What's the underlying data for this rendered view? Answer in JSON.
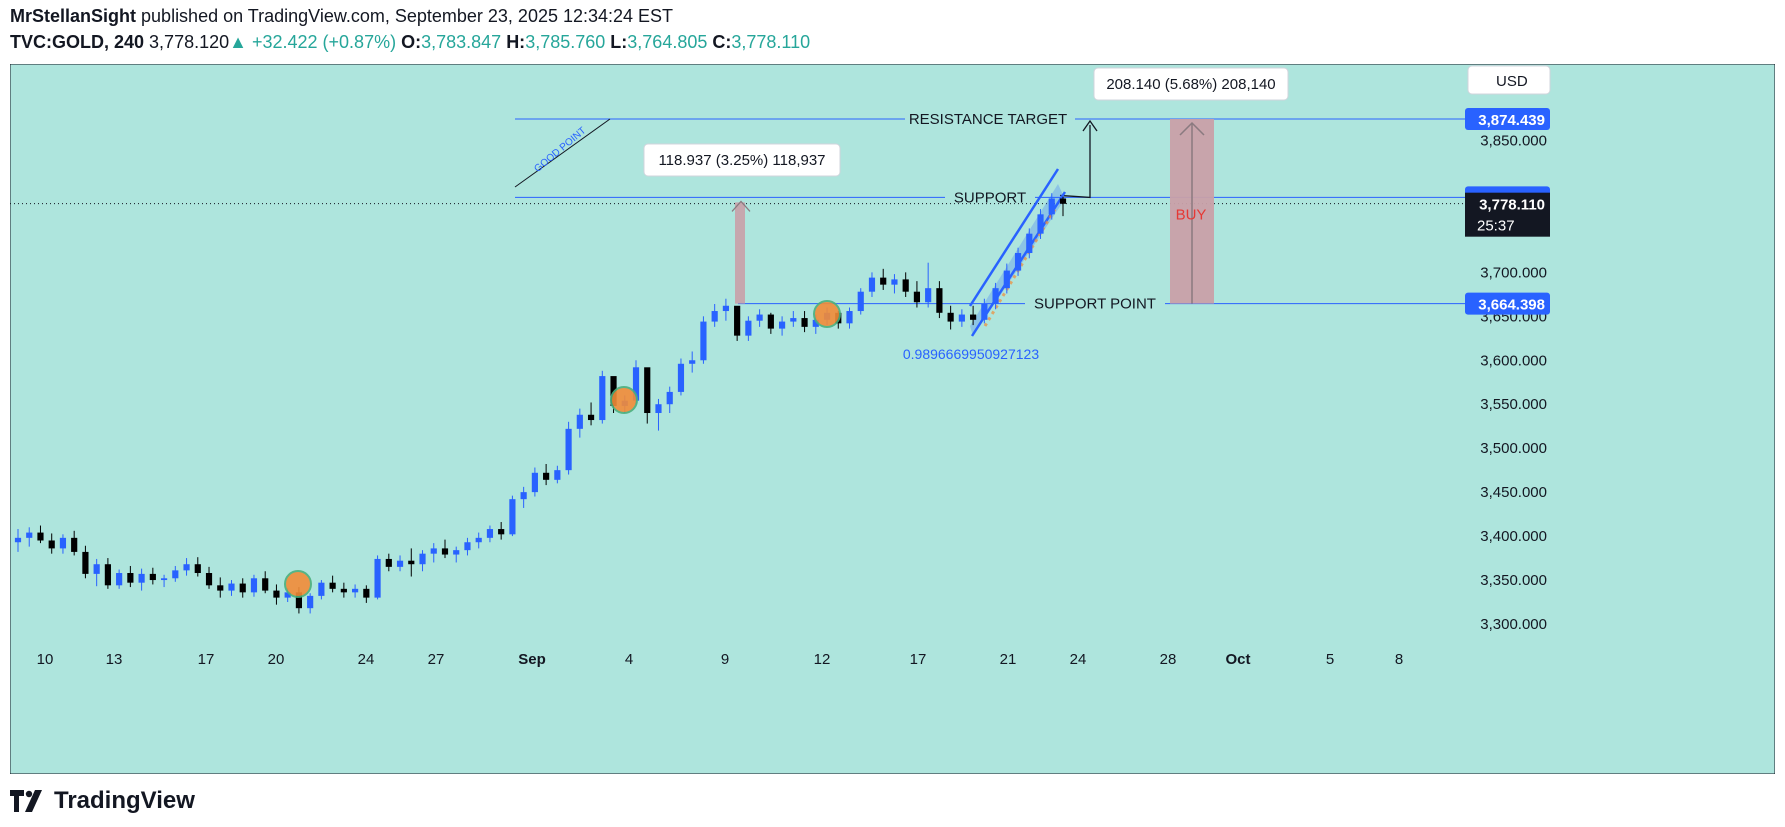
{
  "header": {
    "author": "MrStellanSight",
    "published": "published on TradingView.com, September 23, 2025 12:34:24 EST",
    "symbol": "TVC:GOLD, 240",
    "last": "3,778.120",
    "change": "+32.422 (+0.87%)",
    "o_label": "O:",
    "o": "3,783.847",
    "h_label": "H:",
    "h": "3,785.760",
    "l_label": "L:",
    "l": "3,764.805",
    "c_label": "C:",
    "c": "3,778.110"
  },
  "footer": {
    "brand": "TradingView"
  },
  "colors": {
    "background": "#aee5dd",
    "up_candle": "#2962ff",
    "down_candle": "#000000",
    "line": "#2962ff",
    "range_box": "#c9a0a8",
    "marker": "#f28c38",
    "buy_text": "#e53935",
    "ratio_text": "#2962ff"
  },
  "chart_data": {
    "type": "candlestick",
    "currency": "USD",
    "y_ticks": [
      "3,850.000",
      "3,700.000",
      "3,650.000",
      "3,600.000",
      "3,550.000",
      "3,500.000",
      "3,450.000",
      "3,400.000",
      "3,350.000",
      "3,300.000"
    ],
    "x_ticks": [
      "10",
      "13",
      "17",
      "20",
      "24",
      "27",
      "Sep",
      "4",
      "9",
      "12",
      "17",
      "21",
      "24",
      "28",
      "Oct",
      "5",
      "8"
    ],
    "ylim": [
      3270,
      3915
    ],
    "price_labels": [
      {
        "text": "3,874.439",
        "value": 3874.439,
        "style": "blue"
      },
      {
        "text": "3,785.237",
        "value": 3785.237,
        "style": "blue"
      },
      {
        "text": "3,778.110",
        "sub": "25:37",
        "value": 3778.11,
        "style": "dark"
      },
      {
        "text": "3,664.398",
        "value": 3664.398,
        "style": "blue"
      }
    ],
    "levels": [
      {
        "label": "RESISTANCE  TARGET",
        "value": 3874.439
      },
      {
        "label": "SUPPORT",
        "value": 3785.237
      },
      {
        "label": "SUPPORT  POINT",
        "value": 3664.398
      }
    ],
    "annotations": [
      {
        "text": "GOOD  POINT",
        "kind": "rotated-label"
      },
      {
        "text": "118.937 (3.25%) 118,937",
        "kind": "measure-callout"
      },
      {
        "text": "208.140 (5.68%) 208,140",
        "kind": "measure-callout"
      },
      {
        "text": "BUY",
        "kind": "box-label"
      },
      {
        "text": "0.9896669950927123",
        "kind": "ratio-label"
      }
    ],
    "series_ohlc": [
      [
        3393,
        3408,
        3382,
        3398
      ],
      [
        3398,
        3410,
        3388,
        3404
      ],
      [
        3404,
        3412,
        3392,
        3395
      ],
      [
        3395,
        3403,
        3380,
        3386
      ],
      [
        3386,
        3402,
        3380,
        3398
      ],
      [
        3398,
        3406,
        3378,
        3382
      ],
      [
        3382,
        3389,
        3352,
        3357
      ],
      [
        3357,
        3374,
        3343,
        3368
      ],
      [
        3368,
        3375,
        3340,
        3344
      ],
      [
        3344,
        3362,
        3340,
        3358
      ],
      [
        3358,
        3366,
        3342,
        3347
      ],
      [
        3347,
        3363,
        3338,
        3357
      ],
      [
        3357,
        3364,
        3345,
        3350
      ],
      [
        3350,
        3356,
        3342,
        3352
      ],
      [
        3352,
        3366,
        3348,
        3361
      ],
      [
        3361,
        3375,
        3355,
        3368
      ],
      [
        3368,
        3376,
        3354,
        3358
      ],
      [
        3358,
        3365,
        3340,
        3344
      ],
      [
        3344,
        3353,
        3330,
        3338
      ],
      [
        3338,
        3350,
        3332,
        3346
      ],
      [
        3346,
        3352,
        3330,
        3336
      ],
      [
        3336,
        3356,
        3331,
        3352
      ],
      [
        3352,
        3360,
        3335,
        3338
      ],
      [
        3338,
        3345,
        3322,
        3330
      ],
      [
        3330,
        3341,
        3325,
        3336
      ],
      [
        3336,
        3342,
        3312,
        3318
      ],
      [
        3318,
        3335,
        3312,
        3332
      ],
      [
        3332,
        3350,
        3328,
        3347
      ],
      [
        3347,
        3355,
        3336,
        3340
      ],
      [
        3340,
        3347,
        3330,
        3336
      ],
      [
        3336,
        3345,
        3330,
        3340
      ],
      [
        3340,
        3344,
        3324,
        3330
      ],
      [
        3330,
        3378,
        3328,
        3374
      ],
      [
        3374,
        3380,
        3360,
        3365
      ],
      [
        3365,
        3378,
        3360,
        3372
      ],
      [
        3372,
        3386,
        3354,
        3368
      ],
      [
        3368,
        3384,
        3360,
        3380
      ],
      [
        3380,
        3392,
        3370,
        3386
      ],
      [
        3386,
        3396,
        3375,
        3379
      ],
      [
        3379,
        3388,
        3370,
        3384
      ],
      [
        3384,
        3398,
        3378,
        3393
      ],
      [
        3393,
        3404,
        3386,
        3398
      ],
      [
        3398,
        3412,
        3393,
        3408
      ],
      [
        3408,
        3416,
        3396,
        3402
      ],
      [
        3402,
        3446,
        3400,
        3442
      ],
      [
        3442,
        3456,
        3432,
        3450
      ],
      [
        3450,
        3478,
        3445,
        3472
      ],
      [
        3472,
        3482,
        3458,
        3464
      ],
      [
        3464,
        3480,
        3460,
        3475
      ],
      [
        3475,
        3530,
        3470,
        3522
      ],
      [
        3522,
        3545,
        3512,
        3538
      ],
      [
        3538,
        3552,
        3526,
        3532
      ],
      [
        3532,
        3588,
        3528,
        3582
      ],
      [
        3582,
        3574,
        3540,
        3548
      ],
      [
        3548,
        3560,
        3540,
        3554
      ],
      [
        3554,
        3600,
        3550,
        3592
      ],
      [
        3592,
        3578,
        3528,
        3540
      ],
      [
        3540,
        3556,
        3520,
        3550
      ],
      [
        3550,
        3570,
        3540,
        3564
      ],
      [
        3564,
        3602,
        3560,
        3596
      ],
      [
        3596,
        3610,
        3586,
        3600
      ],
      [
        3600,
        3650,
        3596,
        3644
      ],
      [
        3644,
        3664,
        3638,
        3656
      ],
      [
        3656,
        3670,
        3645,
        3662
      ],
      [
        3662,
        3658,
        3622,
        3628
      ],
      [
        3628,
        3650,
        3622,
        3645
      ],
      [
        3645,
        3658,
        3638,
        3652
      ],
      [
        3652,
        3654,
        3630,
        3636
      ],
      [
        3636,
        3650,
        3628,
        3644
      ],
      [
        3644,
        3656,
        3638,
        3648
      ],
      [
        3648,
        3656,
        3632,
        3638
      ],
      [
        3638,
        3652,
        3630,
        3646
      ],
      [
        3646,
        3660,
        3640,
        3654
      ],
      [
        3654,
        3656,
        3636,
        3642
      ],
      [
        3642,
        3660,
        3636,
        3656
      ],
      [
        3656,
        3682,
        3652,
        3678
      ],
      [
        3678,
        3700,
        3672,
        3694
      ],
      [
        3694,
        3704,
        3680,
        3686
      ],
      [
        3686,
        3698,
        3676,
        3692
      ],
      [
        3692,
        3700,
        3672,
        3678
      ],
      [
        3678,
        3690,
        3660,
        3666
      ],
      [
        3666,
        3711,
        3660,
        3682
      ],
      [
        3682,
        3690,
        3648,
        3654
      ],
      [
        3654,
        3662,
        3635,
        3644
      ],
      [
        3644,
        3658,
        3638,
        3652
      ],
      [
        3652,
        3662,
        3640,
        3646
      ],
      [
        3646,
        3670,
        3642,
        3664
      ],
      [
        3664,
        3688,
        3658,
        3682
      ],
      [
        3682,
        3710,
        3676,
        3702
      ],
      [
        3702,
        3728,
        3696,
        3722
      ],
      [
        3722,
        3750,
        3716,
        3744
      ],
      [
        3744,
        3772,
        3738,
        3766
      ],
      [
        3766,
        3790,
        3760,
        3784
      ],
      [
        3784,
        3786,
        3764,
        3778
      ]
    ]
  }
}
